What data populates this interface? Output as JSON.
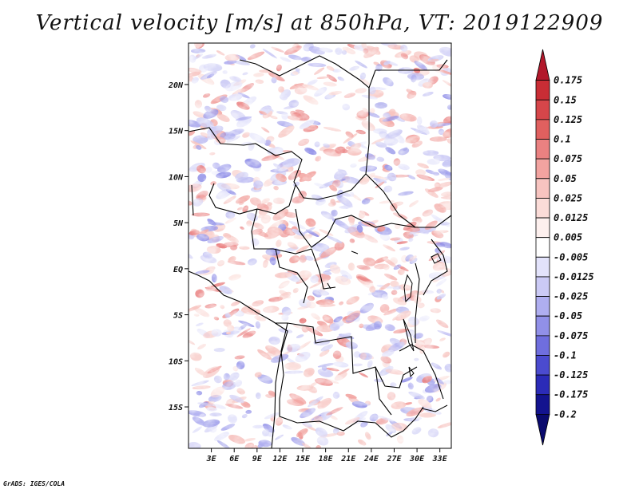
{
  "title": "Vertical velocity [m/s] at 850hPa, VT: 2019122909",
  "credit": "GrADS: IGES/COLA",
  "map": {
    "lat_labels": [
      "20N",
      "15N",
      "10N",
      "5N",
      "EQ",
      "5S",
      "10S",
      "15S"
    ],
    "lon_labels": [
      "3E",
      "6E",
      "9E",
      "12E",
      "15E",
      "18E",
      "21E",
      "24E",
      "27E",
      "30E",
      "33E"
    ],
    "lat_range": [
      -19.5,
      24.5
    ],
    "lon_range": [
      0,
      34.5
    ],
    "lat_ticks": [
      20,
      15,
      10,
      5,
      0,
      -5,
      -10,
      -15
    ],
    "lon_ticks": [
      3,
      6,
      9,
      12,
      15,
      18,
      21,
      24,
      27,
      30,
      33
    ]
  },
  "colorbar": {
    "labels": [
      "0.175",
      "0.15",
      "0.125",
      "0.1",
      "0.075",
      "0.05",
      "0.025",
      "0.0125",
      "0.005",
      "-0.005",
      "-0.0125",
      "-0.025",
      "-0.05",
      "-0.075",
      "-0.1",
      "-0.125",
      "-0.175",
      "-0.2"
    ],
    "colors": [
      "#b2182b",
      "#c92d35",
      "#d6464a",
      "#e0605f",
      "#ea8181",
      "#f2a3a0",
      "#f7c4c0",
      "#fbdcd8",
      "#fdf0ee",
      "#ffffff",
      "#e3e3fb",
      "#cbcaf5",
      "#afaef0",
      "#9190e8",
      "#6f6ede",
      "#4b4bcf",
      "#2b2bb8",
      "#13138f",
      "#0a0a6e"
    ]
  }
}
